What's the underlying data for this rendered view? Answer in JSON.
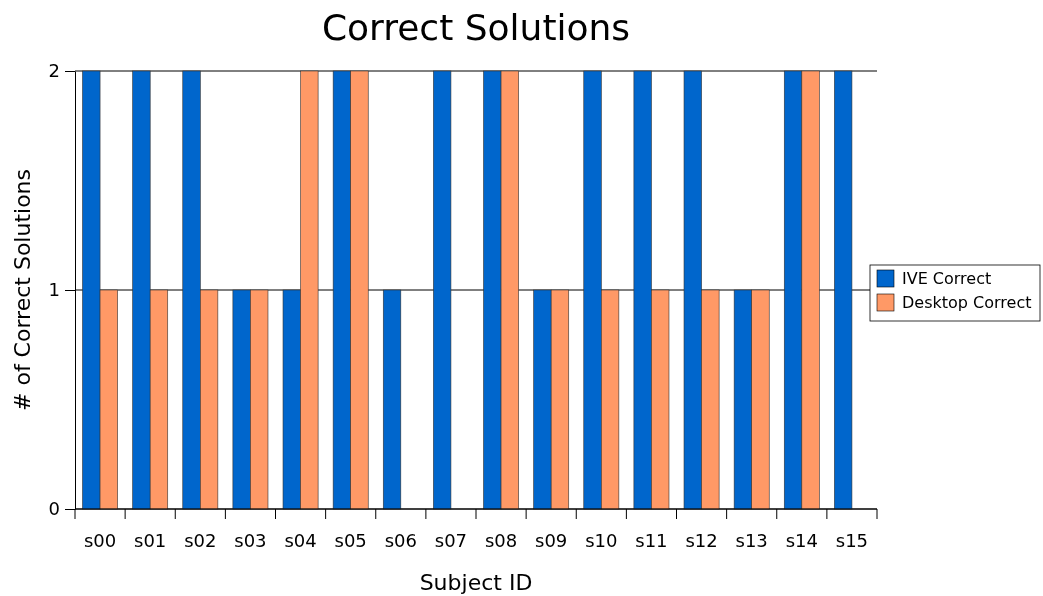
{
  "chart_data": {
    "type": "bar",
    "title": "Correct Solutions",
    "xlabel": "Subject ID",
    "ylabel": "# of Correct Solutions",
    "categories": [
      "s00",
      "s01",
      "s02",
      "s03",
      "s04",
      "s05",
      "s06",
      "s07",
      "s08",
      "s09",
      "s10",
      "s11",
      "s12",
      "s13",
      "s14",
      "s15"
    ],
    "series": [
      {
        "name": "IVE Correct",
        "color": "#0066cc",
        "values": [
          2,
          2,
          2,
          1,
          1,
          2,
          1,
          2,
          2,
          1,
          2,
          2,
          2,
          1,
          2,
          2
        ]
      },
      {
        "name": "Desktop Correct",
        "color": "#ff9966",
        "values": [
          1,
          1,
          1,
          1,
          2,
          2,
          0,
          0,
          2,
          1,
          1,
          1,
          1,
          1,
          2,
          0
        ]
      }
    ],
    "ylim": [
      0,
      2
    ],
    "yticks": [
      0,
      1,
      2
    ],
    "grid": "y",
    "legend": "right"
  }
}
